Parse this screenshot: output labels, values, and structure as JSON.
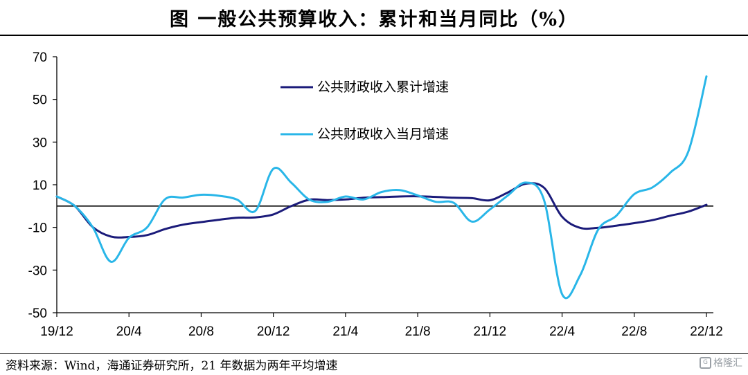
{
  "title": "图  一般公共预算收入：累计和当月同比（%）",
  "source": "资料来源：Wind，海通证券研究所，21 年数据为两年平均增速",
  "watermark": "格隆汇",
  "chart_data": {
    "type": "line",
    "ylim": [
      -50,
      70
    ],
    "yticks": [
      70,
      50,
      30,
      10,
      -10,
      -30,
      -50
    ],
    "ytick_labels": [
      "70",
      "50",
      "30",
      "10",
      "-10",
      "-30",
      "-50"
    ],
    "x": [
      "19/12",
      "20/1",
      "20/2",
      "20/3",
      "20/4",
      "20/5",
      "20/6",
      "20/7",
      "20/8",
      "20/9",
      "20/10",
      "20/11",
      "20/12",
      "21/1",
      "21/2",
      "21/3",
      "21/4",
      "21/5",
      "21/6",
      "21/7",
      "21/8",
      "21/9",
      "21/10",
      "21/11",
      "21/12",
      "22/1",
      "22/2",
      "22/3",
      "22/4",
      "22/5",
      "22/6",
      "22/7",
      "22/8",
      "22/9",
      "22/10",
      "22/11",
      "22/12"
    ],
    "xticks": [
      "19/12",
      "20/4",
      "20/8",
      "20/12",
      "21/4",
      "21/8",
      "21/12",
      "22/4",
      "22/8",
      "22/12"
    ],
    "grid": false,
    "legend_position": "top-center",
    "series": [
      {
        "name": "公共财政收入累计增速",
        "color": "#1b1b7a",
        "values": [
          4.5,
          0,
          -9.9,
          -14.3,
          -14.5,
          -13.6,
          -10.8,
          -8.7,
          -7.5,
          -6.4,
          -5.5,
          -5.3,
          -3.9,
          0,
          3,
          2.8,
          3.1,
          3.9,
          4.2,
          4.5,
          4.6,
          4.3,
          3.9,
          3.7,
          2.7,
          6.4,
          10.5,
          8.6,
          -5,
          -10.2,
          -10.2,
          -9.2,
          -8,
          -6.6,
          -4.5,
          -2.6,
          0.6
        ]
      },
      {
        "name": "公共财政收入当月增速",
        "color": "#29b6e8",
        "values": [
          4.5,
          0,
          -10,
          -26.1,
          -14.9,
          -10,
          3.2,
          4,
          5.3,
          4.8,
          3,
          -2.3,
          17.5,
          10.9,
          3,
          2,
          4.5,
          3.1,
          6.6,
          7.5,
          5,
          2,
          1.5,
          -7.3,
          -1.6,
          5,
          11,
          2.8,
          -41.3,
          -32.5,
          -11,
          -4.6,
          5.6,
          8.7,
          15.7,
          25.6,
          60.8
        ]
      }
    ]
  }
}
